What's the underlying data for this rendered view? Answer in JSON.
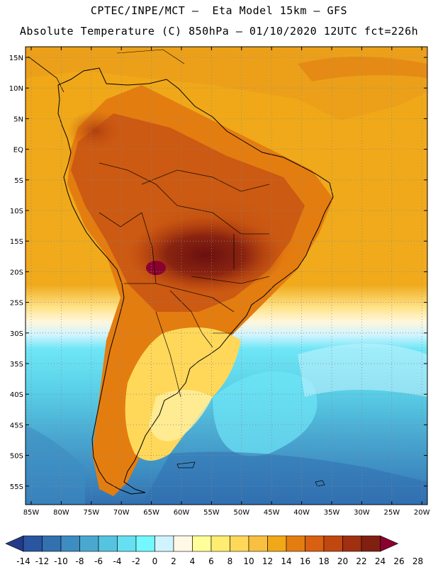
{
  "header": {
    "line1": "CPTEC/INPE/MCT –  Eta Model 15km – GFS",
    "line2": "Absolute Temperature (C) 850hPa – 01/10/2020 12UTC fct=226h"
  },
  "map": {
    "lat_labels": [
      "15N",
      "10N",
      "5N",
      "EQ",
      "5S",
      "10S",
      "15S",
      "20S",
      "25S",
      "30S",
      "35S",
      "40S",
      "45S",
      "50S",
      "55S"
    ],
    "lon_labels": [
      "85W",
      "80W",
      "75W",
      "70W",
      "65W",
      "60W",
      "55W",
      "50W",
      "45W",
      "40W",
      "35W",
      "30W",
      "25W",
      "20W"
    ]
  },
  "legend": {
    "colors": [
      "#233a8a",
      "#2a55a0",
      "#3270b0",
      "#3d8cc2",
      "#4aa8d0",
      "#55c4e0",
      "#66e0f0",
      "#74f8ff",
      "#d0f4ff",
      "#fff8e6",
      "#ffff99",
      "#ffec70",
      "#ffd85a",
      "#f7c040",
      "#f0a818",
      "#e47d10",
      "#d86010",
      "#c04810",
      "#a03010",
      "#802010",
      "#8a0030"
    ],
    "labels": [
      "-14",
      "-12",
      "-10",
      "-8",
      "-6",
      "-4",
      "-2",
      "0",
      "2",
      "4",
      "6",
      "8",
      "10",
      "12",
      "14",
      "16",
      "18",
      "20",
      "22",
      "24",
      "26",
      "28"
    ]
  }
}
